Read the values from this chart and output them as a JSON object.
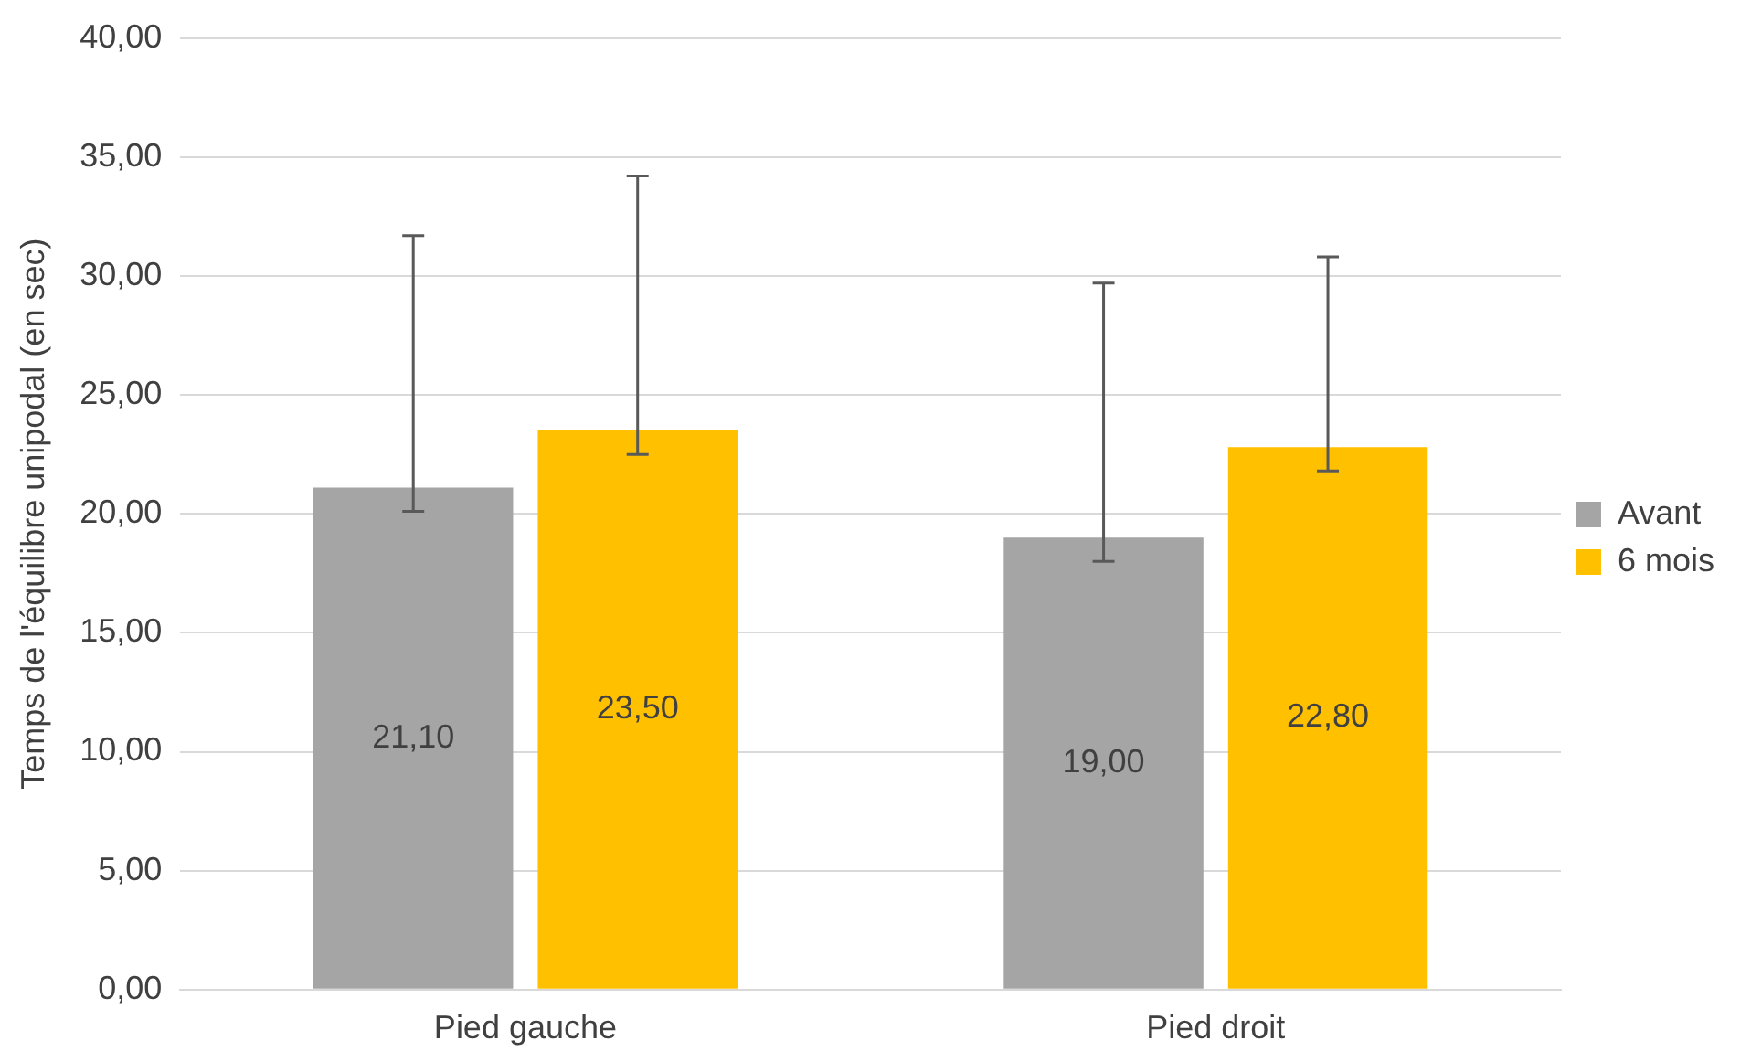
{
  "chart_data": {
    "type": "bar",
    "ylabel": "Temps de l'équilibre unipodal (en sec)",
    "categories": [
      "Pied gauche",
      "Pied droit"
    ],
    "series": [
      {
        "name": "Avant",
        "color": "#a5a5a5",
        "values": [
          21.1,
          19.0
        ],
        "value_labels": [
          "21,10",
          "19,00"
        ],
        "errors": [
          [
            20.1,
            31.7
          ],
          [
            18.0,
            29.7
          ]
        ]
      },
      {
        "name": "6 mois",
        "color": "#ffc000",
        "values": [
          23.5,
          22.8
        ],
        "value_labels": [
          "23,50",
          "22,80"
        ],
        "errors": [
          [
            22.5,
            34.2
          ],
          [
            21.8,
            30.8
          ]
        ]
      }
    ],
    "ylim": [
      0,
      40
    ],
    "yticks": [
      {
        "value": 0,
        "label": "0,00"
      },
      {
        "value": 5,
        "label": "5,00"
      },
      {
        "value": 10,
        "label": "10,00"
      },
      {
        "value": 15,
        "label": "15,00"
      },
      {
        "value": 20,
        "label": "20,00"
      },
      {
        "value": 25,
        "label": "25,00"
      },
      {
        "value": 30,
        "label": "30,00"
      },
      {
        "value": 35,
        "label": "35,00"
      },
      {
        "value": 40,
        "label": "40,00"
      }
    ],
    "grid": "y",
    "legend": "right"
  }
}
